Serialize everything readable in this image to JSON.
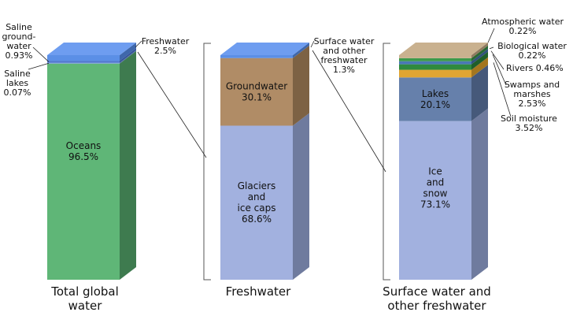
{
  "chart_data": {
    "type": "bar",
    "subtype": "stacked-3d-columns",
    "columns": [
      {
        "key": "total",
        "caption_lines": [
          "Total global",
          "water"
        ],
        "segments": [
          {
            "key": "oceans",
            "lines": [
              "Oceans",
              "96.5%"
            ],
            "value": 96.5,
            "color": "#5fb677",
            "side": "#3e7b4f",
            "top": "#7fd093"
          },
          {
            "key": "saline_lakes",
            "lines": [
              "Saline",
              "lakes",
              "0.07%"
            ],
            "value": 0.07,
            "color": "#7aa0d4",
            "side": "#5273a0",
            "top": "#9bbde8"
          },
          {
            "key": "saline_groundwater",
            "lines": [
              "Saline",
              "ground-",
              "water",
              "0.93%"
            ],
            "value": 0.93,
            "color": "#4f77cf",
            "side": "#35539a",
            "top": "#7a9ae3"
          },
          {
            "key": "freshwater",
            "lines": [
              "Freshwater",
              "2.5%"
            ],
            "value": 2.5,
            "color": "#5b8fe6",
            "side": "#3f67ab",
            "top": "#6e9df0"
          }
        ]
      },
      {
        "key": "freshwater",
        "caption_lines": [
          "Freshwater"
        ],
        "segments": [
          {
            "key": "glaciers",
            "lines": [
              "Glaciers",
              "and",
              "ice caps",
              "68.6%"
            ],
            "value": 68.6,
            "color": "#a2b1df",
            "side": "#6f7b9e",
            "top": "#b7c4ea"
          },
          {
            "key": "groundwater",
            "lines": [
              "Groundwater",
              "30.1%"
            ],
            "value": 30.1,
            "color": "#b08c66",
            "side": "#7d6244",
            "top": "#c4a27e"
          },
          {
            "key": "surface_other",
            "lines": [
              "Surface water",
              "and other",
              "freshwater",
              "1.3%"
            ],
            "value": 1.3,
            "color": "#5b8fe6",
            "side": "#3f67ab",
            "top": "#6e9df0"
          }
        ]
      },
      {
        "key": "surface",
        "caption_lines": [
          "Surface water and",
          "other freshwater"
        ],
        "segments": [
          {
            "key": "ice_snow",
            "lines": [
              "Ice",
              "and",
              "snow",
              "73.1%"
            ],
            "value": 73.1,
            "color": "#a2b1df",
            "side": "#6f7b9e",
            "top": "#b7c4ea"
          },
          {
            "key": "lakes",
            "lines": [
              "Lakes",
              "20.1%"
            ],
            "value": 20.1,
            "color": "#6680ab",
            "side": "#46597a",
            "top": "#8199c2"
          },
          {
            "key": "soil_moisture",
            "lines": [
              "Soil moisture",
              "3.52%"
            ],
            "value": 3.52,
            "color": "#e0a532",
            "side": "#a3761f",
            "top": "#eebb55"
          },
          {
            "key": "swamps",
            "lines": [
              "Swamps and",
              "marshes",
              "2.53%"
            ],
            "value": 2.53,
            "color": "#2f8a3e",
            "side": "#1f5e2a",
            "top": "#4aa159"
          },
          {
            "key": "rivers",
            "lines": [
              "Rivers  0.46%"
            ],
            "value": 0.46,
            "color": "#4a78b5",
            "side": "#31517c",
            "top": "#6a95cc"
          },
          {
            "key": "biological",
            "lines": [
              "Biological water",
              "0.22%"
            ],
            "value": 0.22,
            "color": "#3c9a4c",
            "side": "#286833",
            "top": "#58b168"
          },
          {
            "key": "atmospheric",
            "lines": [
              "Atmospheric water",
              "0.22%"
            ],
            "value": 0.22,
            "color": "#c9b18f",
            "side": "#8e7a60",
            "top": "#c9b18f"
          }
        ]
      }
    ],
    "xlabel": "",
    "ylabel": "",
    "legend": "none",
    "grid": false
  }
}
